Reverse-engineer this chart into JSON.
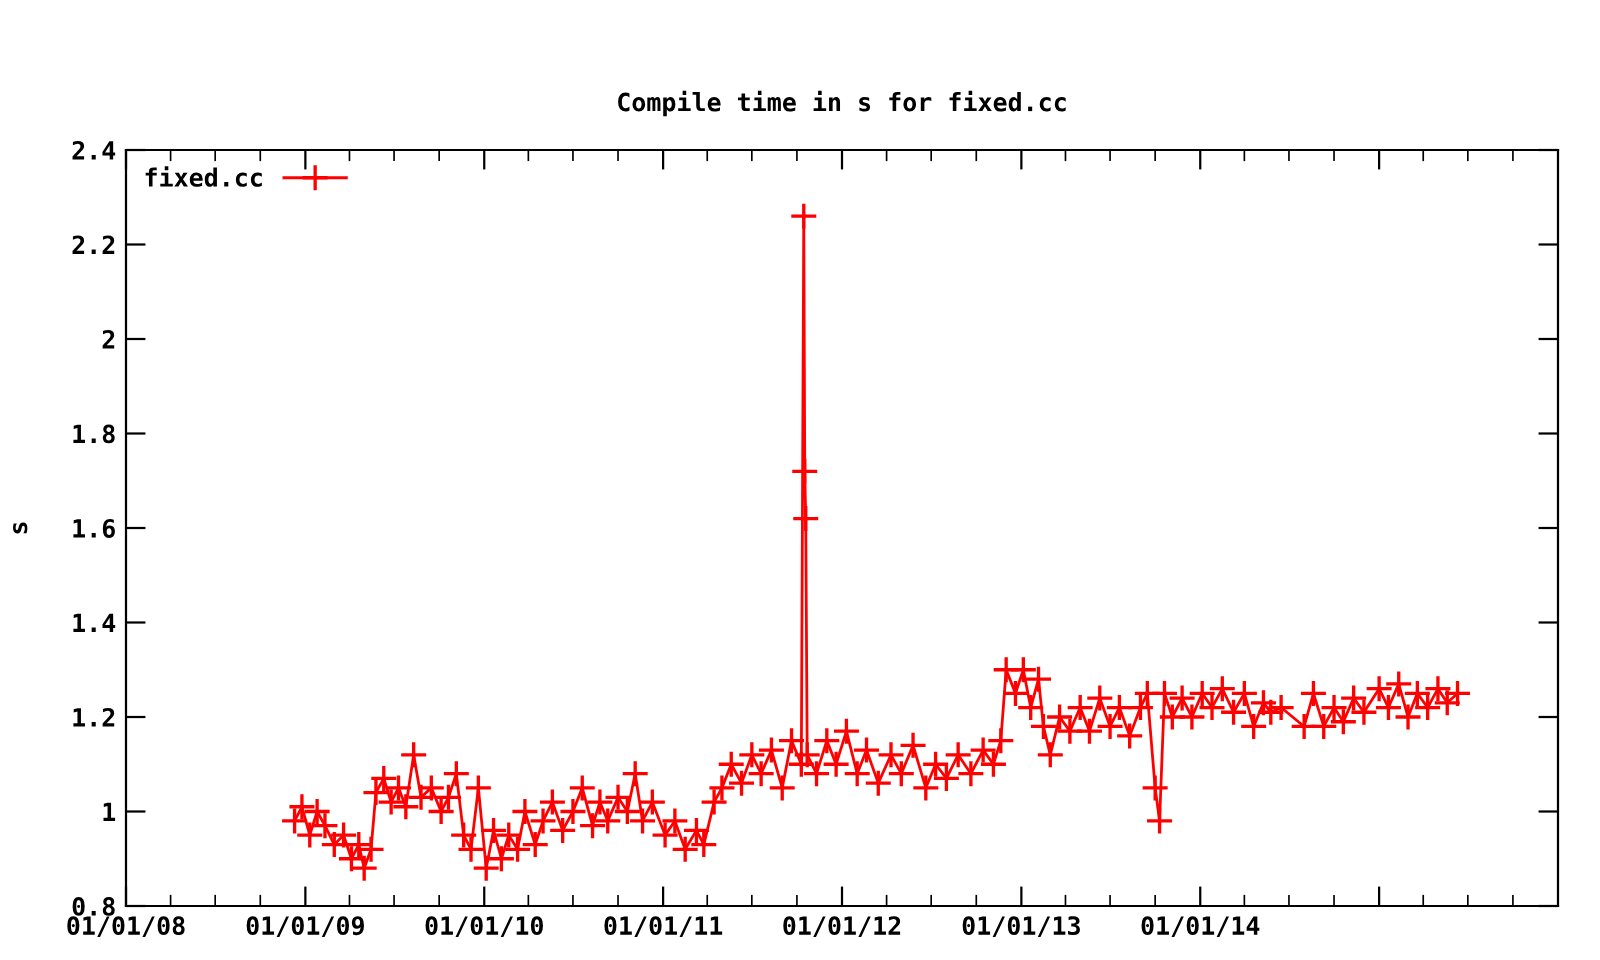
{
  "chart_data": {
    "type": "line",
    "title": "Compile time in s for fixed.cc",
    "ylabel": "s",
    "xlim": [
      "2008-01-01",
      "2016-01-01"
    ],
    "xticks": [
      {
        "value": "2008-01-01",
        "label": "01/01/08"
      },
      {
        "value": "2009-01-01",
        "label": "01/01/09"
      },
      {
        "value": "2010-01-01",
        "label": "01/01/10"
      },
      {
        "value": "2011-01-01",
        "label": "01/01/11"
      },
      {
        "value": "2012-01-01",
        "label": "01/01/12"
      },
      {
        "value": "2013-01-01",
        "label": "01/01/13"
      },
      {
        "value": "2014-01-01",
        "label": "01/01/14"
      },
      {
        "value": "2015-01-01",
        "label": null
      }
    ],
    "ylim": [
      0.8,
      2.4
    ],
    "yticks": [
      0.8,
      1,
      1.2,
      1.4,
      1.6,
      1.8,
      2,
      2.2,
      2.4
    ],
    "grid": false,
    "legend": "top left",
    "marker": "cross",
    "line_style": "solid",
    "series": [
      {
        "name": "fixed.cc",
        "color": "#ff0000",
        "x": [
          "2008-12-10",
          "2008-12-25",
          "2009-01-10",
          "2009-01-25",
          "2009-02-10",
          "2009-03-01",
          "2009-03-20",
          "2009-04-05",
          "2009-04-20",
          "2009-05-01",
          "2009-05-15",
          "2009-05-25",
          "2009-06-10",
          "2009-06-25",
          "2009-07-10",
          "2009-07-25",
          "2009-08-10",
          "2009-08-25",
          "2009-09-15",
          "2009-10-05",
          "2009-10-20",
          "2009-11-05",
          "2009-11-20",
          "2009-12-05",
          "2009-12-20",
          "2010-01-05",
          "2010-01-20",
          "2010-02-05",
          "2010-02-20",
          "2010-03-10",
          "2010-03-25",
          "2010-04-15",
          "2010-05-01",
          "2010-05-20",
          "2010-06-10",
          "2010-07-01",
          "2010-07-20",
          "2010-08-10",
          "2010-08-25",
          "2010-09-10",
          "2010-10-01",
          "2010-10-20",
          "2010-11-05",
          "2010-11-20",
          "2010-12-10",
          "2011-01-05",
          "2011-01-25",
          "2011-02-15",
          "2011-03-10",
          "2011-03-25",
          "2011-04-15",
          "2011-05-01",
          "2011-05-20",
          "2011-06-10",
          "2011-07-01",
          "2011-07-20",
          "2011-08-10",
          "2011-09-01",
          "2011-09-20",
          "2011-10-10",
          "2011-10-15",
          "2011-10-17",
          "2011-10-19",
          "2011-10-22",
          "2011-11-10",
          "2011-12-01",
          "2011-12-20",
          "2012-01-10",
          "2012-02-01",
          "2012-02-20",
          "2012-03-15",
          "2012-04-10",
          "2012-05-01",
          "2012-05-25",
          "2012-06-20",
          "2012-07-10",
          "2012-08-01",
          "2012-08-25",
          "2012-09-20",
          "2012-10-15",
          "2012-11-05",
          "2012-11-20",
          "2012-12-01",
          "2012-12-20",
          "2013-01-05",
          "2013-01-20",
          "2013-02-05",
          "2013-02-15",
          "2013-03-01",
          "2013-03-20",
          "2013-04-10",
          "2013-05-01",
          "2013-05-20",
          "2013-06-10",
          "2013-07-01",
          "2013-07-20",
          "2013-08-10",
          "2013-09-01",
          "2013-09-15",
          "2013-10-01",
          "2013-10-10",
          "2013-10-20",
          "2013-11-05",
          "2013-11-25",
          "2013-12-15",
          "2014-01-05",
          "2014-01-25",
          "2014-02-15",
          "2014-03-10",
          "2014-04-01",
          "2014-04-20",
          "2014-05-10",
          "2014-05-25",
          "2014-06-15",
          "2014-08-01",
          "2014-08-20",
          "2014-09-10",
          "2014-10-01",
          "2014-10-20",
          "2014-11-10",
          "2014-12-01",
          "2015-01-01",
          "2015-01-20",
          "2015-02-10",
          "2015-03-01",
          "2015-03-20",
          "2015-04-10",
          "2015-05-01",
          "2015-05-20",
          "2015-06-10"
        ],
        "values": [
          0.98,
          1.01,
          0.95,
          1.0,
          0.97,
          0.93,
          0.95,
          0.9,
          0.93,
          0.88,
          0.92,
          1.04,
          1.07,
          1.02,
          1.05,
          1.01,
          1.12,
          1.03,
          1.05,
          1.0,
          1.03,
          1.08,
          0.95,
          0.92,
          1.05,
          0.88,
          0.96,
          0.9,
          0.95,
          0.92,
          1.0,
          0.93,
          0.98,
          1.02,
          0.96,
          1.0,
          1.05,
          0.97,
          1.02,
          0.98,
          1.03,
          1.0,
          1.08,
          0.98,
          1.02,
          0.95,
          0.98,
          0.92,
          0.96,
          0.93,
          1.02,
          1.05,
          1.1,
          1.06,
          1.12,
          1.08,
          1.13,
          1.05,
          1.15,
          1.1,
          2.26,
          1.72,
          1.62,
          1.12,
          1.08,
          1.15,
          1.1,
          1.17,
          1.08,
          1.13,
          1.06,
          1.12,
          1.08,
          1.14,
          1.05,
          1.1,
          1.07,
          1.12,
          1.08,
          1.13,
          1.1,
          1.15,
          1.3,
          1.25,
          1.3,
          1.22,
          1.28,
          1.18,
          1.12,
          1.2,
          1.17,
          1.22,
          1.17,
          1.24,
          1.18,
          1.22,
          1.16,
          1.22,
          1.25,
          1.05,
          0.98,
          1.25,
          1.2,
          1.24,
          1.2,
          1.25,
          1.22,
          1.26,
          1.21,
          1.25,
          1.18,
          1.23,
          1.21,
          1.22,
          1.18,
          1.25,
          1.18,
          1.22,
          1.19,
          1.24,
          1.21,
          1.26,
          1.22,
          1.27,
          1.2,
          1.25,
          1.22,
          1.26,
          1.23,
          1.25
        ]
      }
    ]
  }
}
